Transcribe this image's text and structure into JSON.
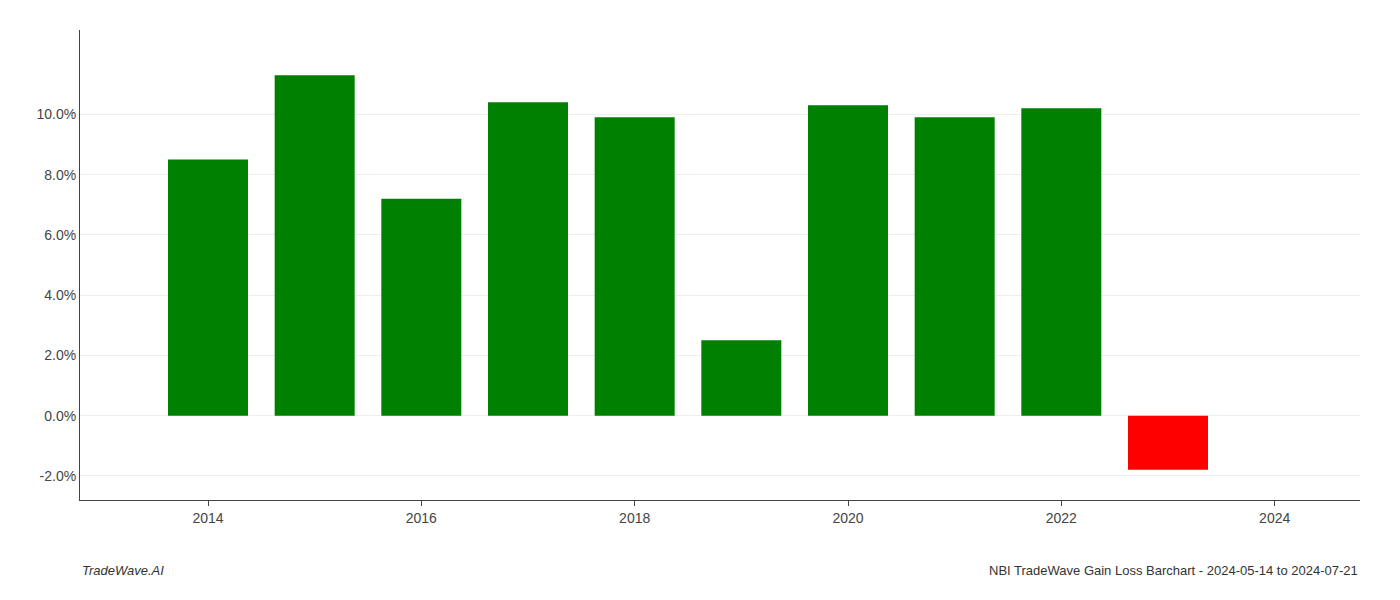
{
  "chart_data": {
    "type": "bar",
    "x": [
      2014,
      2015,
      2016,
      2017,
      2018,
      2019,
      2020,
      2021,
      2022,
      2023
    ],
    "values": [
      0.085,
      0.113,
      0.072,
      0.104,
      0.099,
      0.025,
      0.103,
      0.099,
      0.102,
      -0.018
    ],
    "colors": [
      "#008000",
      "#008000",
      "#008000",
      "#008000",
      "#008000",
      "#008000",
      "#008000",
      "#008000",
      "#008000",
      "#ff0000"
    ],
    "xlim": [
      2012.8,
      2024.8
    ],
    "xticks": [
      2014,
      2016,
      2018,
      2020,
      2022,
      2024
    ],
    "ylim": [
      -0.028,
      0.128
    ],
    "yticks": [
      {
        "value": -0.02,
        "label": "-2.0%"
      },
      {
        "value": 0.0,
        "label": "0.0%"
      },
      {
        "value": 0.02,
        "label": "2.0%"
      },
      {
        "value": 0.04,
        "label": "4.0%"
      },
      {
        "value": 0.06,
        "label": "6.0%"
      },
      {
        "value": 0.08,
        "label": "8.0%"
      },
      {
        "value": 0.1,
        "label": "10.0%"
      }
    ],
    "grid": true,
    "annotations": [
      "TradeWave.AI",
      "NBI TradeWave Gain Loss Barchart - 2024-05-14 to 2024-07-21"
    ]
  }
}
